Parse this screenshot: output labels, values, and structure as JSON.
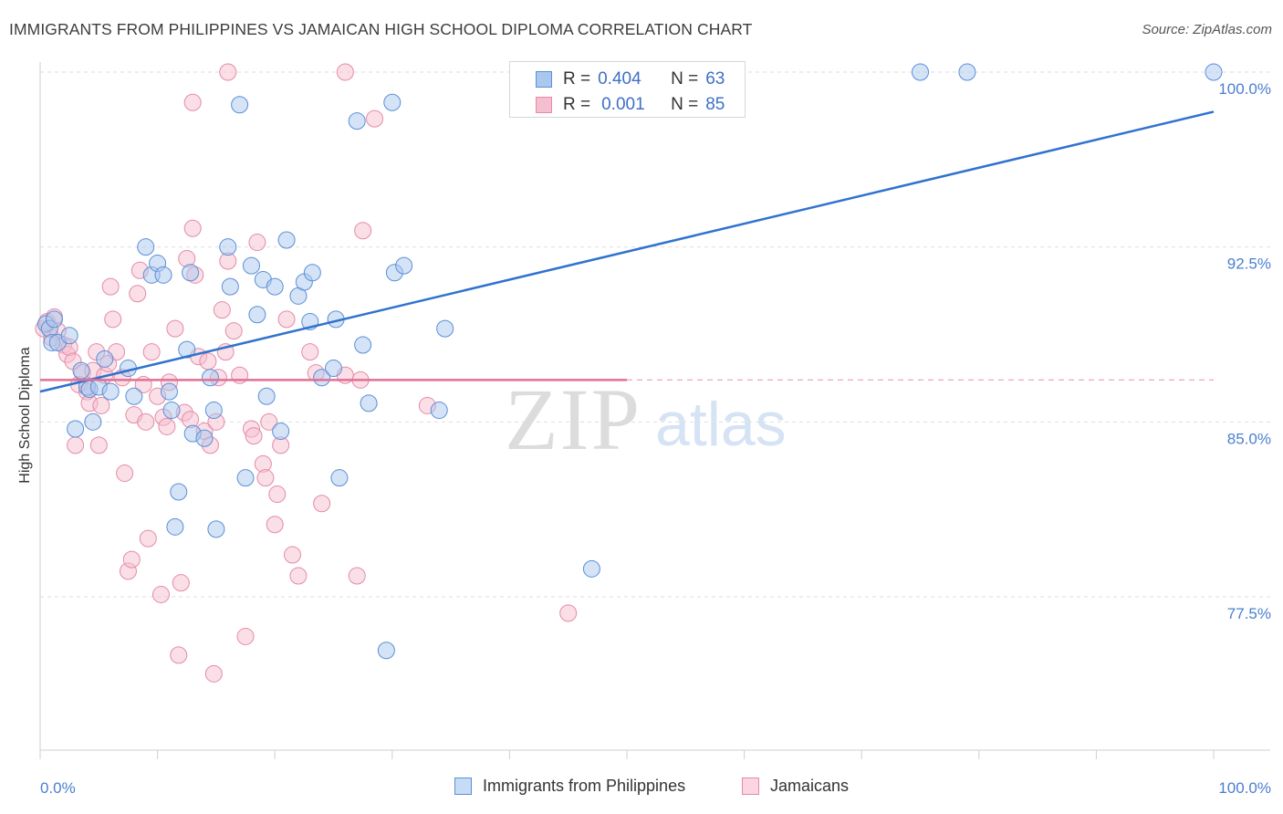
{
  "title": "IMMIGRANTS FROM PHILIPPINES VS JAMAICAN HIGH SCHOOL DIPLOMA CORRELATION CHART",
  "source": "Source: ZipAtlas.com",
  "watermark": {
    "zip": "ZIP",
    "atlas": "atlas"
  },
  "legend": {
    "r_label": "R =",
    "n_label": "N =",
    "rows": [
      {
        "r": "0.404",
        "n": "63"
      },
      {
        "r": "0.001",
        "n": "85"
      }
    ]
  },
  "colors": {
    "blue_fill": "#aac8ee",
    "blue_stroke": "#5b8fd6",
    "blue_line": "#2f72cf",
    "pink_fill": "#f6bfd0",
    "pink_stroke": "#e58aa8",
    "pink_line": "#e07095",
    "tick_text": "#4a7fd0",
    "grid": "#dedede"
  },
  "chart_data": {
    "type": "scatter",
    "title": "IMMIGRANTS FROM PHILIPPINES VS JAMAICAN HIGH SCHOOL DIPLOMA CORRELATION CHART",
    "xlabel": "",
    "ylabel": "High School Diploma",
    "xlim": [
      0,
      100
    ],
    "ylim": [
      70.5,
      100.8
    ],
    "x_tick_labels": [
      "0.0%",
      "100.0%"
    ],
    "y_ticks": [
      77.5,
      85.0,
      92.5,
      100.0
    ],
    "y_tick_labels": [
      "77.5%",
      "85.0%",
      "92.5%",
      "100.0%"
    ],
    "grid": "horizontal dashed",
    "legend_position": "top-center",
    "series": [
      {
        "name": "Immigrants from Philippines",
        "color": "#5b8fd6",
        "trend": {
          "x": [
            0,
            100
          ],
          "y": [
            86.3,
            98.3
          ]
        },
        "points": [
          [
            0.5,
            89.2
          ],
          [
            0.8,
            89.0
          ],
          [
            1.0,
            88.4
          ],
          [
            1.5,
            88.4
          ],
          [
            2.5,
            88.7
          ],
          [
            3.0,
            84.7
          ],
          [
            3.5,
            87.2
          ],
          [
            4.0,
            86.5
          ],
          [
            4.2,
            86.4
          ],
          [
            4.5,
            85.0
          ],
          [
            5.0,
            86.5
          ],
          [
            5.5,
            87.7
          ],
          [
            6.0,
            86.3
          ],
          [
            7.5,
            87.3
          ],
          [
            8.0,
            86.1
          ],
          [
            9.0,
            92.5
          ],
          [
            9.5,
            91.3
          ],
          [
            10.0,
            91.8
          ],
          [
            10.5,
            91.3
          ],
          [
            11.0,
            86.3
          ],
          [
            11.2,
            85.5
          ],
          [
            11.5,
            80.5
          ],
          [
            11.8,
            82.0
          ],
          [
            12.5,
            88.1
          ],
          [
            12.8,
            91.4
          ],
          [
            13.0,
            84.5
          ],
          [
            14.0,
            84.3
          ],
          [
            14.5,
            86.9
          ],
          [
            14.8,
            85.5
          ],
          [
            15.0,
            80.4
          ],
          [
            16.0,
            92.5
          ],
          [
            16.2,
            90.8
          ],
          [
            17.0,
            98.6
          ],
          [
            17.5,
            82.6
          ],
          [
            18.0,
            91.7
          ],
          [
            18.5,
            89.6
          ],
          [
            19.0,
            91.1
          ],
          [
            19.3,
            86.1
          ],
          [
            20.0,
            90.8
          ],
          [
            20.5,
            84.6
          ],
          [
            21.0,
            92.8
          ],
          [
            22.0,
            90.4
          ],
          [
            22.5,
            91.0
          ],
          [
            23.0,
            89.3
          ],
          [
            23.2,
            91.4
          ],
          [
            24.0,
            86.9
          ],
          [
            25.0,
            87.3
          ],
          [
            25.2,
            89.4
          ],
          [
            25.5,
            82.6
          ],
          [
            27.0,
            97.9
          ],
          [
            27.5,
            88.3
          ],
          [
            28.0,
            85.8
          ],
          [
            29.5,
            75.2
          ],
          [
            30.0,
            98.7
          ],
          [
            30.2,
            91.4
          ],
          [
            31.0,
            91.7
          ],
          [
            34.0,
            85.5
          ],
          [
            34.5,
            89.0
          ],
          [
            47.0,
            78.7
          ],
          [
            75.0,
            100.0
          ],
          [
            79.0,
            100.0
          ],
          [
            100.0,
            100.0
          ],
          [
            1.2,
            89.4
          ]
        ]
      },
      {
        "name": "Jamaicans",
        "color": "#e58aa8",
        "trend": {
          "x": [
            0,
            50
          ],
          "y": [
            86.8,
            86.8
          ]
        },
        "trend_dashed": {
          "x": [
            50,
            100
          ],
          "y": [
            86.8,
            86.8
          ]
        },
        "points": [
          [
            0.3,
            89.0
          ],
          [
            0.6,
            89.3
          ],
          [
            1.0,
            88.6
          ],
          [
            1.2,
            89.5
          ],
          [
            1.5,
            88.9
          ],
          [
            2.0,
            88.3
          ],
          [
            2.3,
            87.9
          ],
          [
            2.5,
            88.2
          ],
          [
            2.8,
            87.6
          ],
          [
            3.0,
            84.0
          ],
          [
            3.3,
            86.6
          ],
          [
            3.6,
            87.1
          ],
          [
            4.0,
            86.3
          ],
          [
            4.2,
            85.8
          ],
          [
            4.5,
            87.2
          ],
          [
            4.8,
            88.0
          ],
          [
            5.0,
            84.0
          ],
          [
            5.2,
            85.7
          ],
          [
            5.5,
            87.0
          ],
          [
            5.8,
            87.5
          ],
          [
            6.0,
            90.8
          ],
          [
            6.2,
            89.4
          ],
          [
            6.5,
            88.0
          ],
          [
            7.0,
            86.9
          ],
          [
            7.2,
            82.8
          ],
          [
            7.5,
            78.6
          ],
          [
            7.8,
            79.1
          ],
          [
            8.0,
            85.3
          ],
          [
            8.3,
            90.5
          ],
          [
            8.5,
            91.5
          ],
          [
            8.8,
            86.6
          ],
          [
            9.0,
            85.0
          ],
          [
            9.2,
            80.0
          ],
          [
            9.5,
            88.0
          ],
          [
            10.0,
            86.1
          ],
          [
            10.3,
            77.6
          ],
          [
            10.5,
            85.2
          ],
          [
            10.8,
            84.8
          ],
          [
            11.0,
            86.7
          ],
          [
            11.5,
            89.0
          ],
          [
            11.8,
            75.0
          ],
          [
            12.0,
            78.1
          ],
          [
            12.3,
            85.4
          ],
          [
            12.5,
            92.0
          ],
          [
            12.8,
            85.1
          ],
          [
            13.0,
            93.3
          ],
          [
            13.2,
            91.3
          ],
          [
            13.5,
            87.8
          ],
          [
            14.0,
            84.6
          ],
          [
            14.3,
            87.6
          ],
          [
            14.5,
            84.0
          ],
          [
            14.8,
            74.2
          ],
          [
            15.0,
            85.0
          ],
          [
            15.2,
            86.9
          ],
          [
            15.5,
            89.8
          ],
          [
            15.8,
            88.0
          ],
          [
            16.0,
            91.9
          ],
          [
            16.5,
            88.9
          ],
          [
            17.0,
            87.0
          ],
          [
            17.5,
            75.8
          ],
          [
            18.0,
            84.7
          ],
          [
            18.2,
            84.4
          ],
          [
            18.5,
            92.7
          ],
          [
            19.0,
            83.2
          ],
          [
            19.2,
            82.6
          ],
          [
            19.5,
            85.0
          ],
          [
            20.0,
            80.6
          ],
          [
            20.2,
            81.9
          ],
          [
            20.5,
            84.0
          ],
          [
            21.0,
            89.4
          ],
          [
            21.5,
            79.3
          ],
          [
            22.0,
            78.4
          ],
          [
            23.0,
            88.0
          ],
          [
            23.5,
            87.1
          ],
          [
            24.0,
            81.5
          ],
          [
            26.0,
            87.0
          ],
          [
            27.0,
            78.4
          ],
          [
            27.3,
            86.8
          ],
          [
            27.5,
            93.2
          ],
          [
            28.5,
            98.0
          ],
          [
            33.0,
            85.7
          ],
          [
            45.0,
            76.8
          ],
          [
            16.0,
            100.0
          ],
          [
            26.0,
            100.0
          ],
          [
            13.0,
            98.7
          ]
        ]
      }
    ]
  },
  "bottom_legend": [
    {
      "label": "Immigrants from Philippines"
    },
    {
      "label": "Jamaicans"
    }
  ]
}
